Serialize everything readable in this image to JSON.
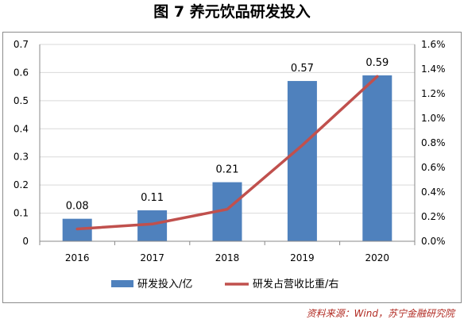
{
  "title": "图 7  养元饮品研发投入",
  "source": "资料来源：Wind，苏宁金融研究院",
  "colors": {
    "bar": "#4f81bd",
    "line": "#c0504d",
    "grid": "#d9d9d9",
    "axis": "#888888"
  },
  "chart_data": {
    "type": "bar",
    "categories": [
      "2016",
      "2017",
      "2018",
      "2019",
      "2020"
    ],
    "series": [
      {
        "name": "研发投入/亿",
        "type": "bar",
        "axis": "left",
        "values": [
          0.08,
          0.11,
          0.21,
          0.57,
          0.59
        ],
        "labels": [
          "0.08",
          "0.11",
          "0.21",
          "0.57",
          "0.59"
        ]
      },
      {
        "name": "研发占营收比重/右",
        "type": "line",
        "axis": "right",
        "values": [
          0.001,
          0.0014,
          0.0026,
          0.0078,
          0.0134
        ]
      }
    ],
    "ylim_left": [
      0,
      0.7
    ],
    "ylim_right": [
      0,
      0.016
    ],
    "yticks_left": [
      "0",
      "0.1",
      "0.2",
      "0.3",
      "0.4",
      "0.5",
      "0.6",
      "0.7"
    ],
    "yticks_right": [
      "0.0%",
      "0.2%",
      "0.4%",
      "0.6%",
      "0.8%",
      "1.0%",
      "1.2%",
      "1.4%",
      "1.6%"
    ],
    "grid": true,
    "legend_position": "bottom"
  }
}
